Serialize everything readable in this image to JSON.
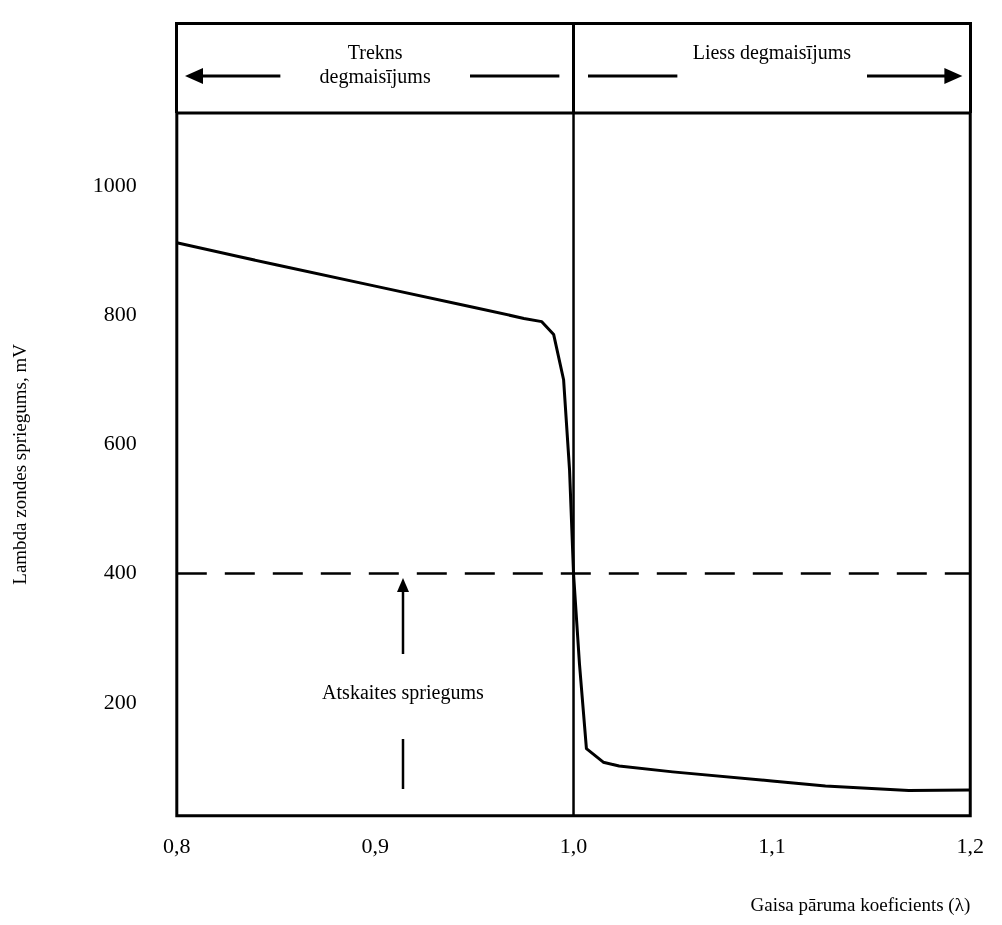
{
  "chart_data": {
    "type": "line",
    "xlabel": "Gaisa pāruma koeficients (λ)",
    "ylabel": "Lambda zondes spriegums, mV",
    "annotations": [
      "Trekns degmaisījums",
      "Liess degmaisījums"
    ],
    "series": [
      {
        "color": "#000000",
        "x": [
          0.8,
          0.85,
          0.9,
          0.95,
          0.975,
          0.984,
          0.99,
          0.995,
          0.998,
          1.0,
          1.003,
          1.0065,
          1.015,
          1.023,
          1.05,
          1.1,
          1.127,
          1.169,
          1.2
        ],
        "values": [
          912,
          878,
          845,
          812,
          795,
          790,
          770,
          700,
          560,
          400,
          260,
          129,
          108,
          102,
          93,
          79,
          71,
          64,
          65
        ]
      }
    ],
    "xlim": [
      0.8,
      1.2
    ],
    "xticks": [
      {
        "value": 0.8,
        "label": "0,8"
      },
      {
        "value": 0.9,
        "label": "0,9"
      },
      {
        "value": 1.0,
        "label": "1,0"
      },
      {
        "value": 1.1,
        "label": "1,1"
      },
      {
        "value": 1.2,
        "label": "1,2"
      }
    ],
    "ylim": [
      25,
      1113
    ],
    "yticks": [
      200,
      400,
      600,
      800,
      1000
    ],
    "ref_lines": [
      {
        "axis": "y",
        "value": 400,
        "label": "Atskaites spriegums",
        "line_style": "dashed",
        "color": "#000000"
      },
      {
        "axis": "x",
        "value": 1.0,
        "color": "#000000",
        "line_style": "solid"
      }
    ],
    "grid": false,
    "legend": false,
    "marker": "none",
    "line_style": "solid"
  }
}
